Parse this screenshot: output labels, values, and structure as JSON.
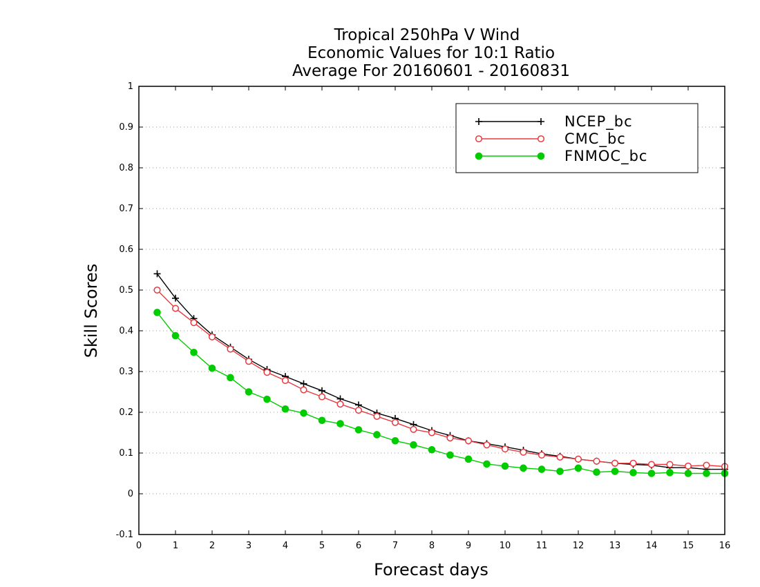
{
  "chart_data": {
    "type": "line",
    "title": [
      "Tropical 250hPa V Wind",
      "Economic Values for 10:1 Ratio",
      "Average For 20160601 - 20160831"
    ],
    "xlabel": "Forecast days",
    "ylabel": "Skill Scores",
    "xlim": [
      0,
      16
    ],
    "ylim": [
      -0.1,
      1
    ],
    "xticks": [
      0,
      1,
      2,
      3,
      4,
      5,
      6,
      7,
      8,
      9,
      10,
      11,
      12,
      13,
      14,
      15,
      16
    ],
    "yticks": [
      -0.1,
      0,
      0.1,
      0.2,
      0.3,
      0.4,
      0.5,
      0.6,
      0.7,
      0.8,
      0.9,
      1
    ],
    "ytick_labels": [
      "-0.1",
      "0",
      "0.1",
      "0.2",
      "0.3",
      "0.4",
      "0.5",
      "0.6",
      "0.7",
      "0.8",
      "0.9",
      "1"
    ],
    "grid": "horizontal dotted",
    "legend_position": "top-right",
    "x": [
      0.5,
      1,
      1.5,
      2,
      2.5,
      3,
      3.5,
      4,
      4.5,
      5,
      5.5,
      6,
      6.5,
      7,
      7.5,
      8,
      8.5,
      9,
      9.5,
      10,
      10.5,
      11,
      11.5,
      12,
      12.5,
      13,
      13.5,
      14,
      14.5,
      15,
      15.5,
      16
    ],
    "series": [
      {
        "name": "NCEP_bc",
        "color": "#000000",
        "marker": "plus",
        "values": [
          0.54,
          0.48,
          0.43,
          0.39,
          0.36,
          0.33,
          0.305,
          0.288,
          0.27,
          0.253,
          0.233,
          0.218,
          0.198,
          0.185,
          0.17,
          0.155,
          0.143,
          0.13,
          0.123,
          0.115,
          0.107,
          0.098,
          0.092,
          0.085,
          0.08,
          0.075,
          0.072,
          0.07,
          0.064,
          0.064,
          0.06,
          0.06
        ]
      },
      {
        "name": "CMC_bc",
        "color": "#e8393f",
        "marker": "open-circle",
        "values": [
          0.5,
          0.455,
          0.42,
          0.385,
          0.355,
          0.325,
          0.298,
          0.278,
          0.255,
          0.238,
          0.22,
          0.205,
          0.19,
          0.175,
          0.158,
          0.15,
          0.137,
          0.13,
          0.12,
          0.11,
          0.102,
          0.095,
          0.09,
          0.085,
          0.08,
          0.075,
          0.075,
          0.072,
          0.072,
          0.068,
          0.07,
          0.067
        ]
      },
      {
        "name": "FNMOC_bc",
        "color": "#00cc00",
        "marker": "filled-circle",
        "values": [
          0.445,
          0.388,
          0.347,
          0.308,
          0.285,
          0.25,
          0.232,
          0.208,
          0.198,
          0.18,
          0.172,
          0.157,
          0.145,
          0.13,
          0.12,
          0.108,
          0.095,
          0.085,
          0.073,
          0.068,
          0.063,
          0.06,
          0.055,
          0.063,
          0.053,
          0.055,
          0.052,
          0.05,
          0.052,
          0.05,
          0.05,
          0.05
        ]
      }
    ]
  }
}
